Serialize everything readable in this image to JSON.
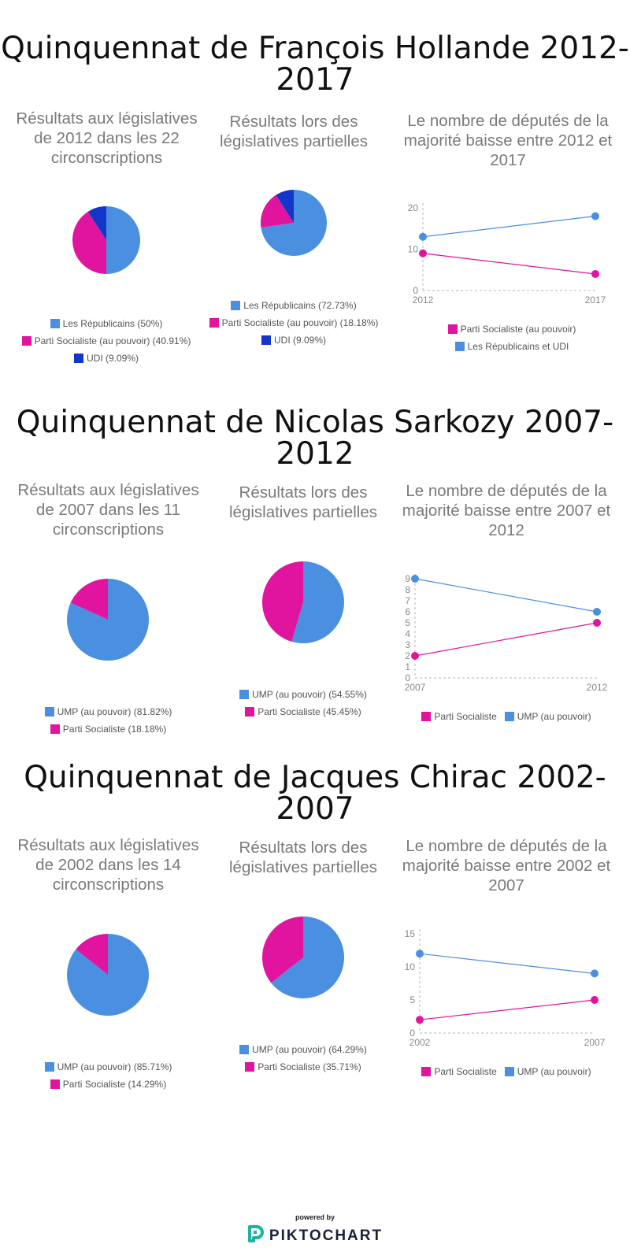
{
  "colors": {
    "blue": "#4a8fe0",
    "pink": "#e0149f",
    "darkblue": "#1136c8"
  },
  "sections": [
    {
      "title": "Quinquennat de François Hollande 2012-2017",
      "charts": [
        {
          "type": "pie",
          "title": "Résultats aux législatives de 2012 dans les 22 circonscriptions",
          "slices": [
            {
              "label": "Les Républicains (50%)",
              "value": 50,
              "color": "#4a8fe0"
            },
            {
              "label": "Parti Socialiste (au pouvoir) (40.91%)",
              "value": 40.91,
              "color": "#e0149f"
            },
            {
              "label": "UDI (9.09%)",
              "value": 9.09,
              "color": "#1136c8"
            }
          ]
        },
        {
          "type": "pie",
          "title": "Résultats lors des législatives partielles",
          "slices": [
            {
              "label": "Les Républicains (72.73%)",
              "value": 72.73,
              "color": "#4a8fe0"
            },
            {
              "label": "Parti Socialiste (au pouvoir) (18.18%)",
              "value": 18.18,
              "color": "#e0149f"
            },
            {
              "label": "UDI (9.09%)",
              "value": 9.09,
              "color": "#1136c8"
            }
          ]
        },
        {
          "type": "line",
          "title": "Le nombre de députés de la majorité baisse entre 2012 et 2017",
          "categories": [
            "2012",
            "2017"
          ],
          "yticks": [
            0,
            10,
            20
          ],
          "ylim": [
            0,
            20
          ],
          "series": [
            {
              "name": "Parti Socialiste (au pouvoir)",
              "values": [
                9,
                4
              ],
              "color": "#e0149f"
            },
            {
              "name": "Les Républicains et UDI",
              "values": [
                13,
                18
              ],
              "color": "#4a8fe0"
            }
          ]
        }
      ]
    },
    {
      "title": "Quinquennat de Nicolas Sarkozy 2007-2012",
      "charts": [
        {
          "type": "pie",
          "title": "Résultats aux législatives de 2007 dans les 11 circonscriptions",
          "slices": [
            {
              "label": "UMP (au pouvoir) (81.82%)",
              "value": 81.82,
              "color": "#4a8fe0"
            },
            {
              "label": "Parti Socialiste (18.18%)",
              "value": 18.18,
              "color": "#e0149f"
            }
          ]
        },
        {
          "type": "pie",
          "title": "Résultats lors des législatives partielles",
          "slices": [
            {
              "label": "UMP (au pouvoir) (54.55%)",
              "value": 54.55,
              "color": "#4a8fe0"
            },
            {
              "label": "Parti Socialiste (45.45%)",
              "value": 45.45,
              "color": "#e0149f"
            }
          ]
        },
        {
          "type": "line",
          "title": "Le nombre de députés de la majorité baisse entre 2007 et 2012",
          "categories": [
            "2007",
            "2012"
          ],
          "yticks": [
            0,
            1,
            2,
            3,
            4,
            5,
            6,
            7,
            8,
            9
          ],
          "ylim": [
            0,
            9
          ],
          "series": [
            {
              "name": "Parti Socialiste",
              "values": [
                2,
                5
              ],
              "color": "#e0149f"
            },
            {
              "name": "UMP (au pouvoir)",
              "values": [
                9,
                6
              ],
              "color": "#4a8fe0"
            }
          ]
        }
      ]
    },
    {
      "title": "Quinquennat de Jacques Chirac 2002-2007",
      "charts": [
        {
          "type": "pie",
          "title": "Résultats aux législatives de 2002 dans les 14 circonscriptions",
          "slices": [
            {
              "label": "UMP (au pouvoir) (85.71%)",
              "value": 85.71,
              "color": "#4a8fe0"
            },
            {
              "label": "Parti Socialiste (14.29%)",
              "value": 14.29,
              "color": "#e0149f"
            }
          ]
        },
        {
          "type": "pie",
          "title": "Résultats lors des législatives partielles",
          "slices": [
            {
              "label": "UMP (au pouvoir) (64.29%)",
              "value": 64.29,
              "color": "#4a8fe0"
            },
            {
              "label": "Parti Socialiste (35.71%)",
              "value": 35.71,
              "color": "#e0149f"
            }
          ]
        },
        {
          "type": "line",
          "title": "Le nombre de députés de la majorité baisse entre 2002 et 2007",
          "categories": [
            "2002",
            "2007"
          ],
          "yticks": [
            0,
            5,
            10,
            15
          ],
          "ylim": [
            0,
            15
          ],
          "series": [
            {
              "name": "Parti Socialiste",
              "values": [
                2,
                5
              ],
              "color": "#e0149f"
            },
            {
              "name": "UMP (au pouvoir)",
              "values": [
                12,
                9
              ],
              "color": "#4a8fe0"
            }
          ]
        }
      ]
    }
  ],
  "chart_data": [
    {
      "type": "pie",
      "title": "Résultats aux législatives de 2012 dans les 22 circonscriptions",
      "categories": [
        "Les Républicains",
        "Parti Socialiste (au pouvoir)",
        "UDI"
      ],
      "values": [
        50,
        40.91,
        9.09
      ]
    },
    {
      "type": "pie",
      "title": "Résultats lors des législatives partielles",
      "categories": [
        "Les Républicains",
        "Parti Socialiste (au pouvoir)",
        "UDI"
      ],
      "values": [
        72.73,
        18.18,
        9.09
      ]
    },
    {
      "type": "line",
      "title": "Le nombre de députés de la majorité baisse entre 2012 et 2017",
      "categories": [
        "2012",
        "2017"
      ],
      "ylim": [
        0,
        20
      ],
      "series": [
        {
          "name": "Parti Socialiste (au pouvoir)",
          "values": [
            9,
            4
          ]
        },
        {
          "name": "Les Républicains et UDI",
          "values": [
            13,
            18
          ]
        }
      ]
    },
    {
      "type": "pie",
      "title": "Résultats aux législatives de 2007 dans les 11 circonscriptions",
      "categories": [
        "UMP (au pouvoir)",
        "Parti Socialiste"
      ],
      "values": [
        81.82,
        18.18
      ]
    },
    {
      "type": "pie",
      "title": "Résultats lors des législatives partielles",
      "categories": [
        "UMP (au pouvoir)",
        "Parti Socialiste"
      ],
      "values": [
        54.55,
        45.45
      ]
    },
    {
      "type": "line",
      "title": "Le nombre de députés de la majorité baisse entre 2007 et 2012",
      "categories": [
        "2007",
        "2012"
      ],
      "ylim": [
        0,
        9
      ],
      "series": [
        {
          "name": "Parti Socialiste",
          "values": [
            2,
            5
          ]
        },
        {
          "name": "UMP (au pouvoir)",
          "values": [
            9,
            6
          ]
        }
      ]
    },
    {
      "type": "pie",
      "title": "Résultats aux législatives de 2002 dans les 14 circonscriptions",
      "categories": [
        "UMP (au pouvoir)",
        "Parti Socialiste"
      ],
      "values": [
        85.71,
        14.29
      ]
    },
    {
      "type": "pie",
      "title": "Résultats lors des législatives partielles",
      "categories": [
        "UMP (au pouvoir)",
        "Parti Socialiste"
      ],
      "values": [
        64.29,
        35.71
      ]
    },
    {
      "type": "line",
      "title": "Le nombre de députés de la majorité baisse entre 2002 et 2007",
      "categories": [
        "2002",
        "2007"
      ],
      "ylim": [
        0,
        15
      ],
      "series": [
        {
          "name": "Parti Socialiste",
          "values": [
            2,
            5
          ]
        },
        {
          "name": "UMP (au pouvoir)",
          "values": [
            12,
            9
          ]
        }
      ]
    }
  ],
  "footer": {
    "powered_by": "powered by",
    "brand": "PIKTOCHART",
    "logo_icon": "piktochart-logo-icon"
  }
}
